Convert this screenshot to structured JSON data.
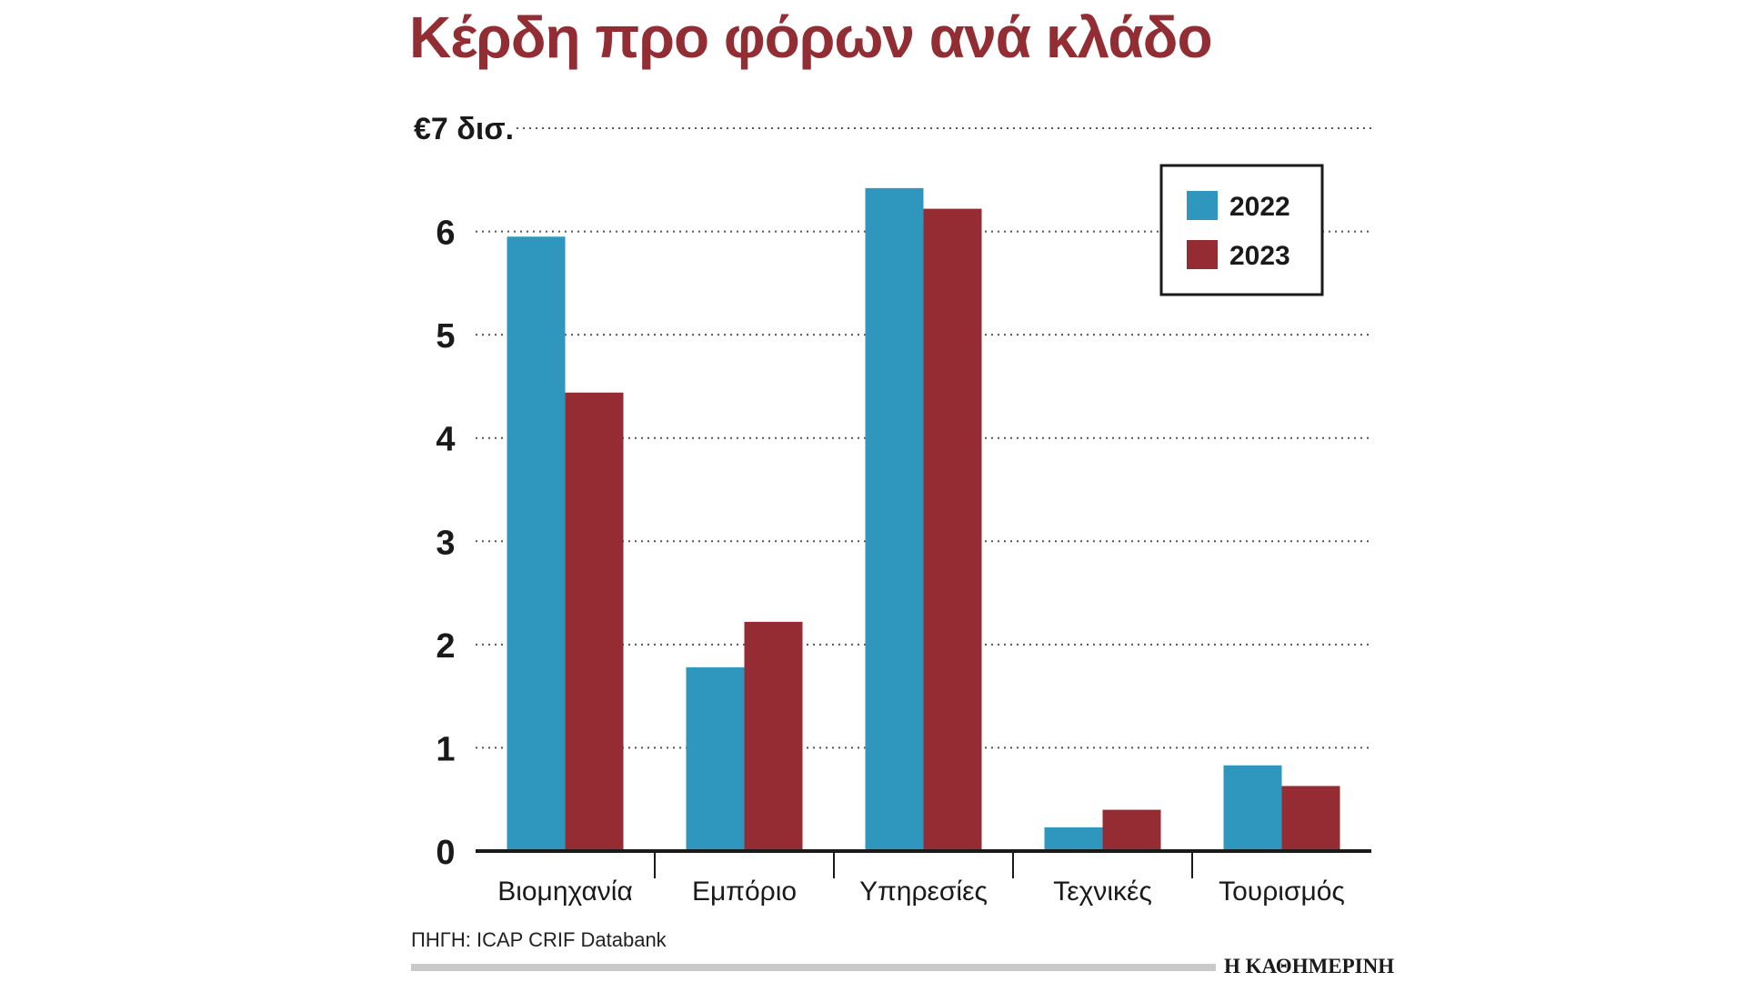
{
  "title": "Κέρδη προ φόρων ανά κλάδο",
  "source": "ΠΗΓΗ: ICAP CRIF Databank",
  "brand": "Η ΚΑΘΗΜΕΡΙΝΗ",
  "colors": {
    "s2022": "#2f97bd",
    "s2023": "#952c33",
    "title": "#922d34"
  },
  "chart_data": {
    "type": "bar",
    "title": "Κέρδη προ φόρων ανά κλάδο",
    "top_tick_label": "€7 δισ.",
    "categories": [
      "Βιομηχανία",
      "Εμπόριο",
      "Υπηρεσίες",
      "Τεχνικές",
      "Τουρισμός"
    ],
    "series": [
      {
        "name": "2022",
        "color": "#2f97bd",
        "values": [
          5.95,
          1.78,
          6.42,
          0.23,
          0.83
        ]
      },
      {
        "name": "2023",
        "color": "#952c33",
        "values": [
          4.44,
          2.22,
          6.22,
          0.4,
          0.63
        ]
      }
    ],
    "yticks": [
      0,
      1,
      2,
      3,
      4,
      5,
      6
    ],
    "ylim": [
      0,
      7
    ],
    "grid": true,
    "legend": "top-right"
  }
}
